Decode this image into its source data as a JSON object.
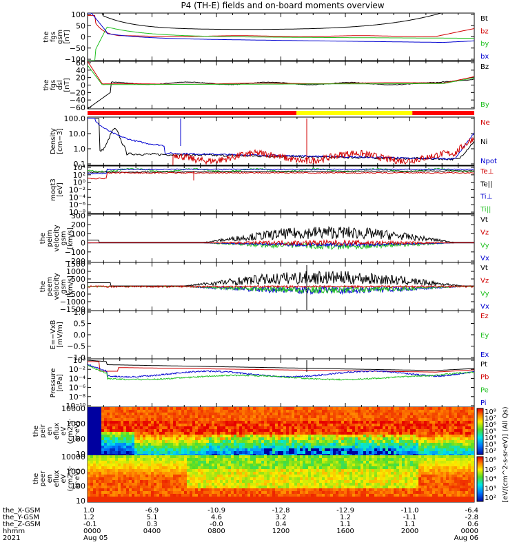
{
  "title": "P4 (TH-E) fields and on-board moments overview",
  "chart_data": {
    "type": "line",
    "x_range": [
      "2021-08-05 00:00",
      "2021-08-06 00:00"
    ],
    "panels": [
      {
        "id": "fgs-gsm",
        "ylabel": [
          "the",
          "fgs",
          "gsm",
          "[nT]"
        ],
        "ylim": [
          -100,
          100
        ],
        "ticks": [
          "100",
          "50",
          "0",
          "−50",
          "−100"
        ],
        "legend": [
          {
            "text": "Bt",
            "color": "#000000"
          },
          {
            "text": "bz",
            "color": "#d00000"
          },
          {
            "text": "by",
            "color": "#20c020"
          },
          {
            "text": "bx",
            "color": "#0000d0"
          }
        ]
      },
      {
        "id": "fgs-dsl",
        "ylabel": [
          "the",
          "fgs",
          "dsl",
          "[nT]"
        ],
        "ylim": [
          -60,
          60
        ],
        "ticks": [
          "60",
          "40",
          "20",
          "0",
          "−20",
          "−40",
          "−60"
        ],
        "legend": [
          {
            "text": "Bz",
            "color": "#000000"
          },
          {
            "text": "By",
            "color": "#20c020"
          }
        ]
      },
      {
        "id": "density",
        "ylabel": [
          "Density",
          "[cm−3]"
        ],
        "scale": "log",
        "ticks": [
          "100.0",
          "10.0",
          "1.0",
          "0.1"
        ],
        "legend": [
          {
            "text": "Ne",
            "color": "#d00000"
          },
          {
            "text": "Ni",
            "color": "#000000"
          },
          {
            "text": "Npot",
            "color": "#0000d0"
          }
        ]
      },
      {
        "id": "temp",
        "ylabel": [
          "moqt3",
          "[eV]"
        ],
        "scale": "log",
        "ticks": [
          "10⁴",
          "10²",
          "10⁰",
          "10⁻²",
          "10⁻⁴",
          "10⁻⁶",
          "10⁻⁸"
        ],
        "legend": [
          {
            "text": "Te⊥",
            "color": "#d00000"
          },
          {
            "text": "Te||",
            "color": "#000000"
          },
          {
            "text": "Ti⊥",
            "color": "#0000d0"
          },
          {
            "text": "Ti||",
            "color": "#20c020"
          }
        ]
      },
      {
        "id": "ion-velocity",
        "ylabel": [
          "the",
          "peim",
          "velocity",
          "gsm",
          "[km/s]"
        ],
        "ylim": [
          -200,
          300
        ],
        "ticks": [
          "300",
          "200",
          "100",
          "0",
          "−100",
          "−200"
        ],
        "legend": [
          {
            "text": "Vt",
            "color": "#000000"
          },
          {
            "text": "Vz",
            "color": "#d00000"
          },
          {
            "text": "Vy",
            "color": "#20c020"
          },
          {
            "text": "Vx",
            "color": "#0000d0"
          }
        ]
      },
      {
        "id": "electron-velocity",
        "ylabel": [
          "the",
          "peem",
          "velocity",
          "gsm",
          "[km/s]"
        ],
        "ylim": [
          -1500,
          1500
        ],
        "ticks": [
          "1500",
          "1000",
          "500",
          "0",
          "−500",
          "−1000",
          "−1500"
        ],
        "legend": [
          {
            "text": "Vt",
            "color": "#000000"
          },
          {
            "text": "Vz",
            "color": "#d00000"
          },
          {
            "text": "Vy",
            "color": "#20c020"
          },
          {
            "text": "Vx",
            "color": "#0000d0"
          }
        ]
      },
      {
        "id": "efield",
        "ylabel": [
          "E=−VxB",
          "[mV/m]"
        ],
        "ylim": [
          -1,
          1
        ],
        "ticks": [
          "1.0",
          "0.5",
          "0.0",
          "−0.5",
          "−1.0"
        ],
        "legend": [
          {
            "text": "Ez",
            "color": "#d00000"
          },
          {
            "text": "Ey",
            "color": "#20c020"
          },
          {
            "text": "Ex",
            "color": "#0000d0"
          }
        ]
      },
      {
        "id": "pressure",
        "ylabel": [
          "Pressure",
          "[nPa]"
        ],
        "scale": "log",
        "ticks": [
          "10⁰",
          "10⁻²",
          "10⁻⁴",
          "10⁻⁶",
          "10⁻⁸",
          "10⁻¹⁰"
        ],
        "legend": [
          {
            "text": "Pt",
            "color": "#000000"
          },
          {
            "text": "Pb",
            "color": "#d00000"
          },
          {
            "text": "Pe",
            "color": "#20c020"
          },
          {
            "text": "Pi",
            "color": "#0000d0"
          }
        ]
      },
      {
        "id": "ion-spectrogram",
        "ylabel": [
          "the",
          "peir",
          "en",
          "eflux",
          "eV",
          "(cm2·s·",
          "sr·eV)"
        ],
        "scale": "log",
        "ticks": [
          "10000",
          "1000",
          "100",
          "10"
        ]
      },
      {
        "id": "electron-spectrogram",
        "ylabel": [
          "the",
          "peer",
          "en",
          "eflux",
          "eV",
          "(cm2·s·",
          "sr·eV)"
        ],
        "scale": "log",
        "ticks": [
          "10000",
          "1000",
          "100",
          "10"
        ]
      }
    ],
    "colorbar": {
      "label": "[eV/(cm^2-s-sr-eV)] (All Qs)",
      "ticks": [
        "10⁸",
        "10⁷",
        "10⁶",
        "10⁵",
        "10⁴",
        "10³",
        "10²"
      ],
      "ticks2": [
        "10⁶",
        "10⁵",
        "10⁴",
        "10³",
        "10²"
      ]
    },
    "mode_bar": {
      "segments": [
        {
          "from": 0,
          "to": 0.54,
          "color": "#ff0000"
        },
        {
          "from": 0.54,
          "to": 0.84,
          "color": "#ffff00"
        },
        {
          "from": 0.84,
          "to": 1,
          "color": "#ff0000"
        }
      ]
    },
    "footer": {
      "rows": [
        {
          "label": "the_X-GSM",
          "values": [
            "1.0",
            "-6.9",
            "-10.9",
            "-12.8",
            "-12.9",
            "-11.0",
            "-6.4"
          ]
        },
        {
          "label": "the_Y-GSM",
          "values": [
            "1.2",
            "5.1",
            "4.6",
            "3.2",
            "1.2",
            "-1.1",
            "-2.8"
          ]
        },
        {
          "label": "the_Z-GSM",
          "values": [
            "-0.1",
            "0.3",
            "-0.0",
            "0.4",
            "1.1",
            "1.1",
            "0.6"
          ]
        },
        {
          "label": "hhmm",
          "values": [
            "0000",
            "0400",
            "0800",
            "1200",
            "1600",
            "2000",
            "0000"
          ]
        },
        {
          "label": "2021",
          "values": [
            "Aug 05",
            "",
            "",
            "",
            "",
            "",
            "Aug 06"
          ]
        }
      ]
    }
  }
}
